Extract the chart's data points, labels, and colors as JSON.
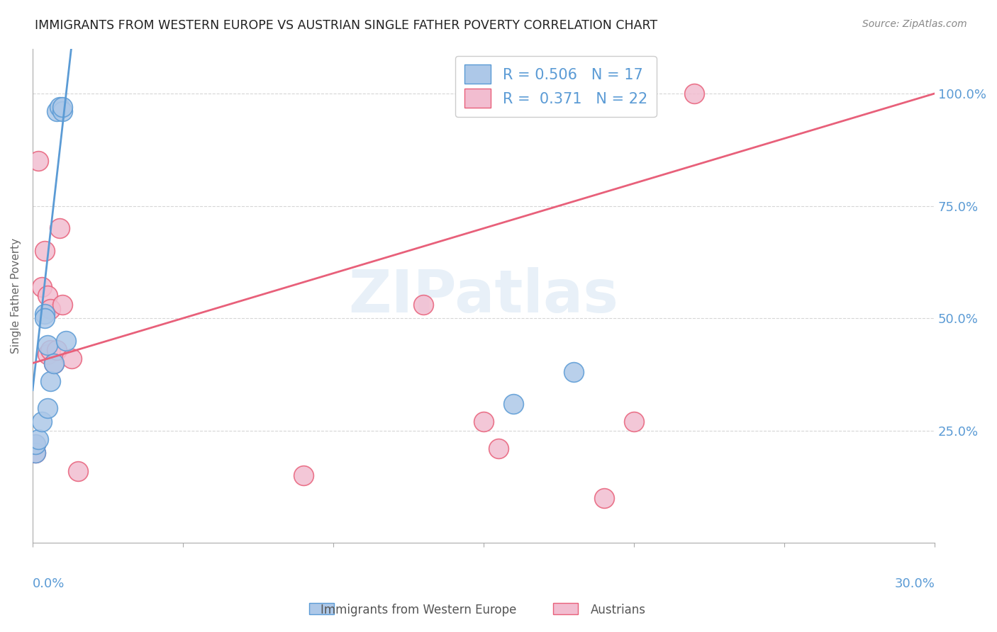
{
  "title": "IMMIGRANTS FROM WESTERN EUROPE VS AUSTRIAN SINGLE FATHER POVERTY CORRELATION CHART",
  "source": "Source: ZipAtlas.com",
  "ylabel": "Single Father Poverty",
  "watermark": "ZIPatlas",
  "blue_color": "#adc8e8",
  "pink_color": "#f2bdd0",
  "blue_line_color": "#5b9bd5",
  "pink_line_color": "#e8607a",
  "title_color": "#222222",
  "axis_label_color": "#5b9bd5",
  "legend_blue_r": "0.506",
  "legend_blue_n": "17",
  "legend_pink_r": "0.371",
  "legend_pink_n": "22",
  "blue_x": [
    0.001,
    0.001,
    0.002,
    0.003,
    0.004,
    0.004,
    0.005,
    0.005,
    0.006,
    0.007,
    0.008,
    0.009,
    0.01,
    0.01,
    0.011,
    0.16,
    0.18
  ],
  "blue_y": [
    0.2,
    0.22,
    0.23,
    0.27,
    0.51,
    0.5,
    0.3,
    0.44,
    0.36,
    0.4,
    0.96,
    0.97,
    0.96,
    0.97,
    0.45,
    0.31,
    0.38
  ],
  "pink_x": [
    0.001,
    0.001,
    0.002,
    0.003,
    0.004,
    0.005,
    0.005,
    0.006,
    0.006,
    0.007,
    0.008,
    0.009,
    0.01,
    0.013,
    0.015,
    0.09,
    0.13,
    0.15,
    0.155,
    0.19,
    0.2,
    0.22
  ],
  "pink_y": [
    0.2,
    0.22,
    0.85,
    0.57,
    0.65,
    0.55,
    0.42,
    0.52,
    0.43,
    0.4,
    0.43,
    0.7,
    0.53,
    0.41,
    0.16,
    0.15,
    0.53,
    0.27,
    0.21,
    0.1,
    0.27,
    1.0
  ],
  "blue_line_x0": 0.0,
  "blue_line_y0": 0.34,
  "blue_line_x1": 0.012,
  "blue_line_y1": 1.05,
  "pink_line_x0": 0.0,
  "pink_line_y0": 0.4,
  "pink_line_x1": 0.3,
  "pink_line_y1": 1.0,
  "xmin": 0.0,
  "xmax": 0.3,
  "ymin": 0.0,
  "ymax": 1.1
}
